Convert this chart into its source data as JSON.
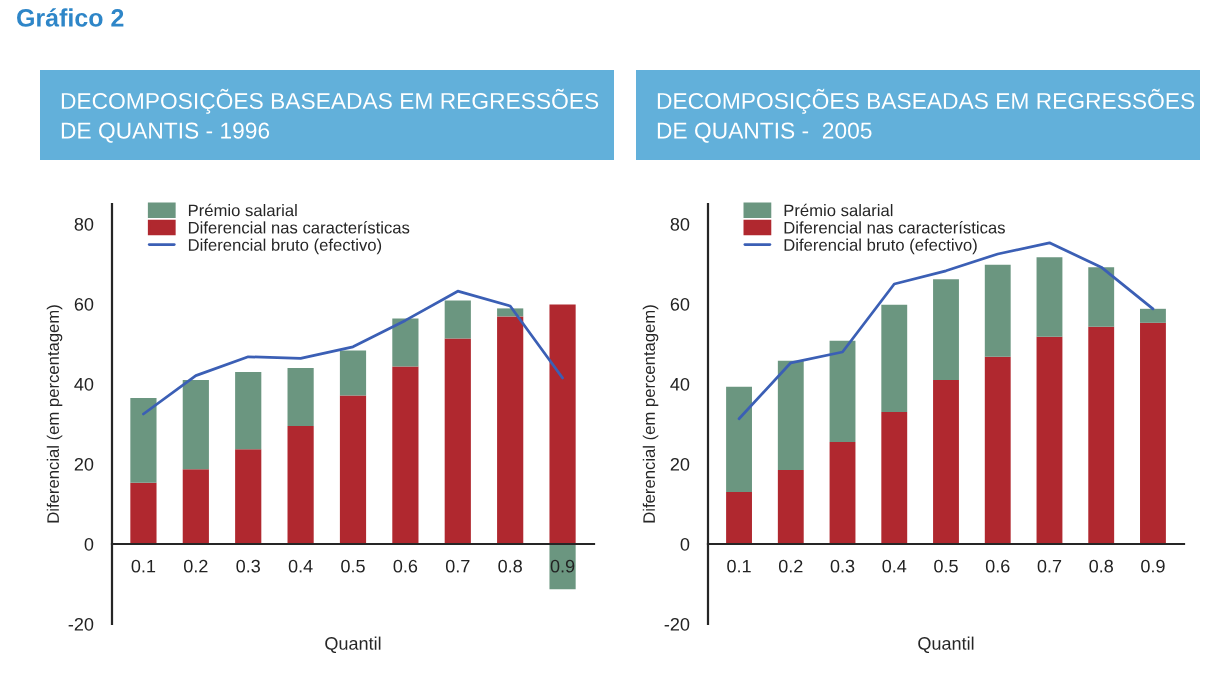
{
  "chart_data": [
    {
      "type": "bar",
      "title": "DECOMPOSIÇÕES BASEADAS EM REGRESSÕES\nDE QUANTIS - 1996",
      "xlabel": "Quantil",
      "ylabel": "Diferencial (em percentagem)",
      "annotations": [
        "Gráfico 2"
      ],
      "categories": [
        "0.1",
        "0.2",
        "0.3",
        "0.4",
        "0.5",
        "0.6",
        "0.7",
        "0.8",
        "0.9"
      ],
      "stacked": true,
      "series": [
        {
          "name": "Diferencial nas características",
          "color": "#b0282f",
          "values": [
            15.3,
            18.7,
            23.7,
            29.5,
            37.1,
            44.4,
            51.4,
            56.9,
            59.9
          ]
        },
        {
          "name": "Prémio salarial",
          "color": "#6b9680",
          "values": [
            21.2,
            22.3,
            19.3,
            14.5,
            11.3,
            12.0,
            9.5,
            2.0,
            -11.3
          ]
        },
        {
          "name": "Diferencial bruto (efectivo)",
          "type": "line",
          "color": "#3b5fb5",
          "values": [
            32.5,
            42.1,
            46.8,
            46.4,
            49.3,
            55.9,
            63.2,
            59.5,
            41.5
          ]
        }
      ],
      "ylim": [
        -20,
        85
      ],
      "yticks": [
        -20,
        0,
        20,
        40,
        60,
        80
      ],
      "grid": false,
      "legend": "top left",
      "marker": "none",
      "line_style": "solid"
    },
    {
      "type": "bar",
      "title": "DECOMPOSIÇÕES BASEADAS EM REGRESSÕES\nDE QUANTIS -  2005",
      "xlabel": "Quantil",
      "ylabel": "Diferencial (em percentagem)",
      "categories": [
        "0.1",
        "0.2",
        "0.3",
        "0.4",
        "0.5",
        "0.6",
        "0.7",
        "0.8",
        "0.9"
      ],
      "stacked": true,
      "series": [
        {
          "name": "Diferencial nas características",
          "color": "#b0282f",
          "values": [
            13.0,
            18.5,
            25.5,
            33.0,
            41.0,
            46.8,
            51.8,
            54.3,
            55.3
          ]
        },
        {
          "name": "Prémio salarial",
          "color": "#6b9680",
          "values": [
            26.3,
            27.3,
            25.3,
            26.8,
            25.2,
            23.0,
            19.9,
            14.9,
            3.5
          ]
        },
        {
          "name": "Diferencial bruto (efectivo)",
          "type": "line",
          "color": "#3b5fb5",
          "values": [
            31.3,
            45.3,
            48.0,
            65.0,
            68.3,
            72.5,
            75.3,
            69.2,
            58.8
          ]
        }
      ],
      "ylim": [
        -20,
        85
      ],
      "yticks": [
        -20,
        0,
        20,
        40,
        60,
        80
      ],
      "grid": false,
      "legend": "top left",
      "marker": "none",
      "line_style": "solid"
    }
  ]
}
